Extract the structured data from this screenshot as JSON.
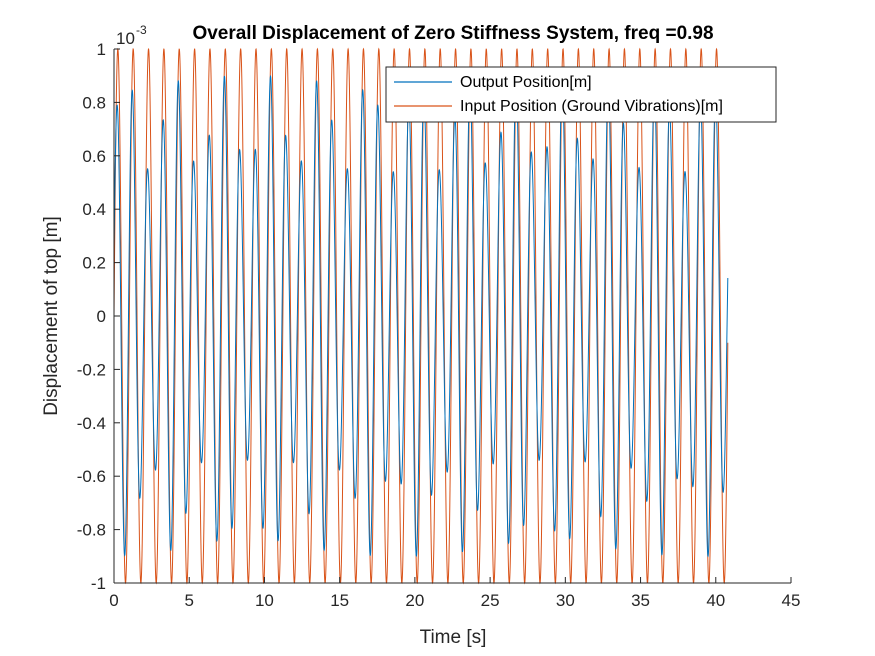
{
  "chart_data": {
    "type": "line",
    "title": "Overall Displacement of Zero Stiffness System, freq =0.98",
    "xlabel": "Time [s]",
    "ylabel": "Displacement of top [m]",
    "y_exponent_label": "10",
    "y_exponent_power": "-3",
    "y_multiplier": 0.001,
    "xlim": [
      0,
      45
    ],
    "ylim": [
      -1,
      1
    ],
    "x_ticks": [
      0,
      5,
      10,
      15,
      20,
      25,
      30,
      35,
      40,
      45
    ],
    "x_tick_labels": [
      "0",
      "5",
      "10",
      "15",
      "20",
      "25",
      "30",
      "35",
      "40",
      "45"
    ],
    "y_ticks": [
      -1,
      -0.8,
      -0.6,
      -0.4,
      -0.2,
      0,
      0.2,
      0.4,
      0.6,
      0.8,
      1
    ],
    "y_tick_labels": [
      "-1",
      "-0.8",
      "-0.6",
      "-0.4",
      "-0.2",
      "0",
      "0.2",
      "0.4",
      "0.6",
      "0.8",
      "1"
    ],
    "grid": false,
    "legend_position": "top-right",
    "x_end": 40.8,
    "series": [
      {
        "name": "Output Position[m]",
        "color": "#0072BD",
        "amplitude": 0.72,
        "frequency_hz": 0.98,
        "envelope_amplitude": 0.18,
        "envelope_frequency_hz": 0.31
      },
      {
        "name": "Input Position (Ground Vibrations)[m]",
        "color": "#D95319",
        "amplitude": 1.0,
        "frequency_hz": 0.98
      }
    ]
  }
}
